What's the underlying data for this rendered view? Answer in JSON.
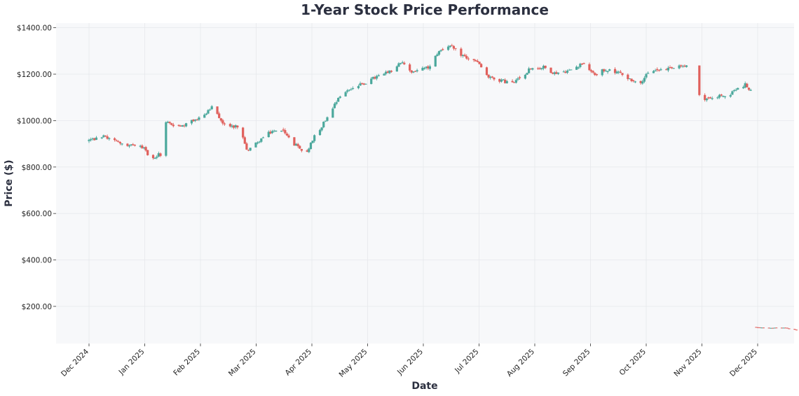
{
  "chart_data": {
    "type": "candlestick",
    "title": "1-Year Stock Price Performance",
    "xlabel": "Date",
    "ylabel": "Price ($)",
    "ylim": [
      40,
      1420
    ],
    "yticks": [
      200,
      400,
      600,
      800,
      1000,
      1200,
      1400
    ],
    "ytick_labels": [
      "$200.00",
      "$400.00",
      "$600.00",
      "$800.00",
      "$1000.00",
      "$1200.00",
      "$1400.00"
    ],
    "xticks": [
      "Dec 2024",
      "Jan 2025",
      "Feb 2025",
      "Mar 2025",
      "Apr 2025",
      "May 2025",
      "Jun 2025",
      "Jul 2025",
      "Aug 2025",
      "Sep 2025",
      "Oct 2025",
      "Nov 2025",
      "Dec 2025"
    ],
    "grid": true,
    "colors": {
      "up": "#4ba89c",
      "down": "#e0605c",
      "background": "#f7f8fa",
      "grid": "#e6e8ec"
    },
    "price_path_close": [
      [
        0,
        915
      ],
      [
        8,
        930
      ],
      [
        16,
        905
      ],
      [
        24,
        895
      ],
      [
        30,
        880
      ],
      [
        34,
        835
      ],
      [
        40,
        860
      ],
      [
        42,
        990
      ],
      [
        50,
        975
      ],
      [
        60,
        1010
      ],
      [
        67,
        1055
      ],
      [
        74,
        980
      ],
      [
        82,
        975
      ],
      [
        86,
        870
      ],
      [
        92,
        910
      ],
      [
        100,
        955
      ],
      [
        106,
        950
      ],
      [
        112,
        900
      ],
      [
        118,
        850
      ],
      [
        122,
        920
      ],
      [
        128,
        990
      ],
      [
        136,
        1100
      ],
      [
        142,
        1135
      ],
      [
        150,
        1160
      ],
      [
        156,
        1185
      ],
      [
        166,
        1215
      ],
      [
        170,
        1250
      ],
      [
        176,
        1210
      ],
      [
        186,
        1230
      ],
      [
        190,
        1290
      ],
      [
        196,
        1325
      ],
      [
        202,
        1290
      ],
      [
        206,
        1270
      ],
      [
        212,
        1250
      ],
      [
        218,
        1185
      ],
      [
        226,
        1170
      ],
      [
        232,
        1160
      ],
      [
        240,
        1220
      ],
      [
        248,
        1230
      ],
      [
        254,
        1205
      ],
      [
        262,
        1215
      ],
      [
        270,
        1250
      ],
      [
        276,
        1200
      ],
      [
        282,
        1220
      ],
      [
        290,
        1205
      ],
      [
        296,
        1175
      ],
      [
        300,
        1160
      ],
      [
        306,
        1210
      ],
      [
        312,
        1220
      ],
      [
        318,
        1225
      ],
      [
        326,
        1235
      ],
      [
        328,
        1130
      ],
      [
        334,
        1100
      ],
      [
        340,
        1090
      ],
      [
        344,
        1110
      ],
      [
        348,
        1095
      ],
      [
        352,
        1130
      ],
      [
        358,
        1155
      ],
      [
        362,
        1115
      ],
      [
        364,
        110
      ],
      [
        370,
        106
      ],
      [
        376,
        108
      ],
      [
        380,
        108
      ],
      [
        382,
        102
      ],
      [
        386,
        98
      ]
    ]
  }
}
